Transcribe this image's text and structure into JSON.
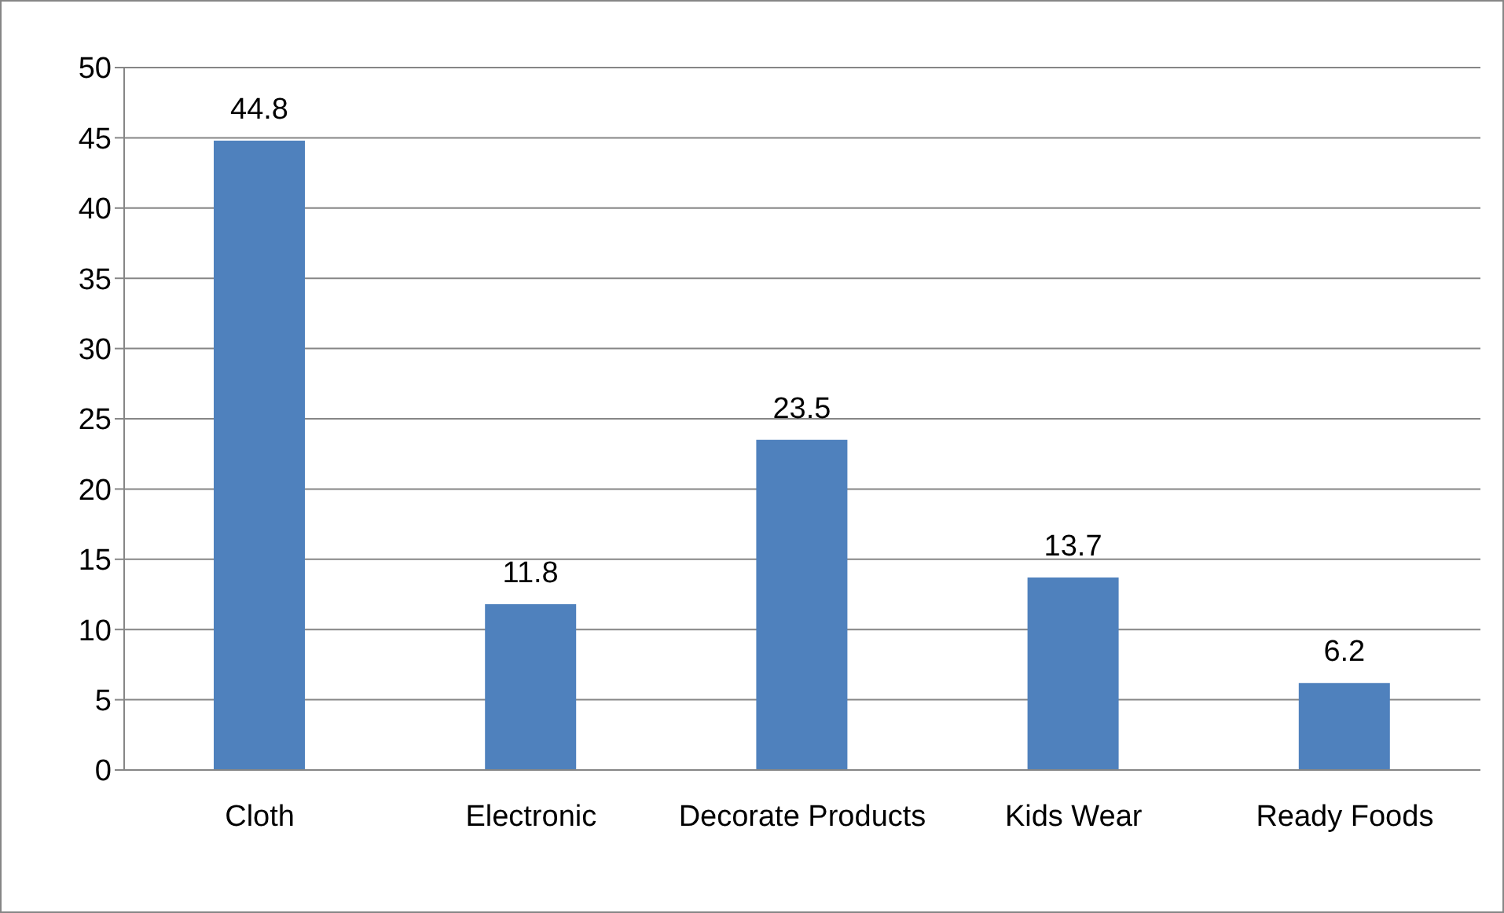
{
  "chart_data": {
    "type": "bar",
    "categories": [
      "Cloth",
      "Electronic",
      "Decorate Products",
      "Kids Wear",
      "Ready Foods"
    ],
    "values": [
      44.8,
      11.8,
      23.5,
      13.7,
      6.2
    ],
    "color": "#4f81bd",
    "ylim": [
      0,
      50
    ],
    "yticks": [
      0,
      5,
      10,
      15,
      20,
      25,
      30,
      35,
      40,
      45,
      50
    ],
    "grid": "y",
    "data_labels": true,
    "legend": false
  }
}
